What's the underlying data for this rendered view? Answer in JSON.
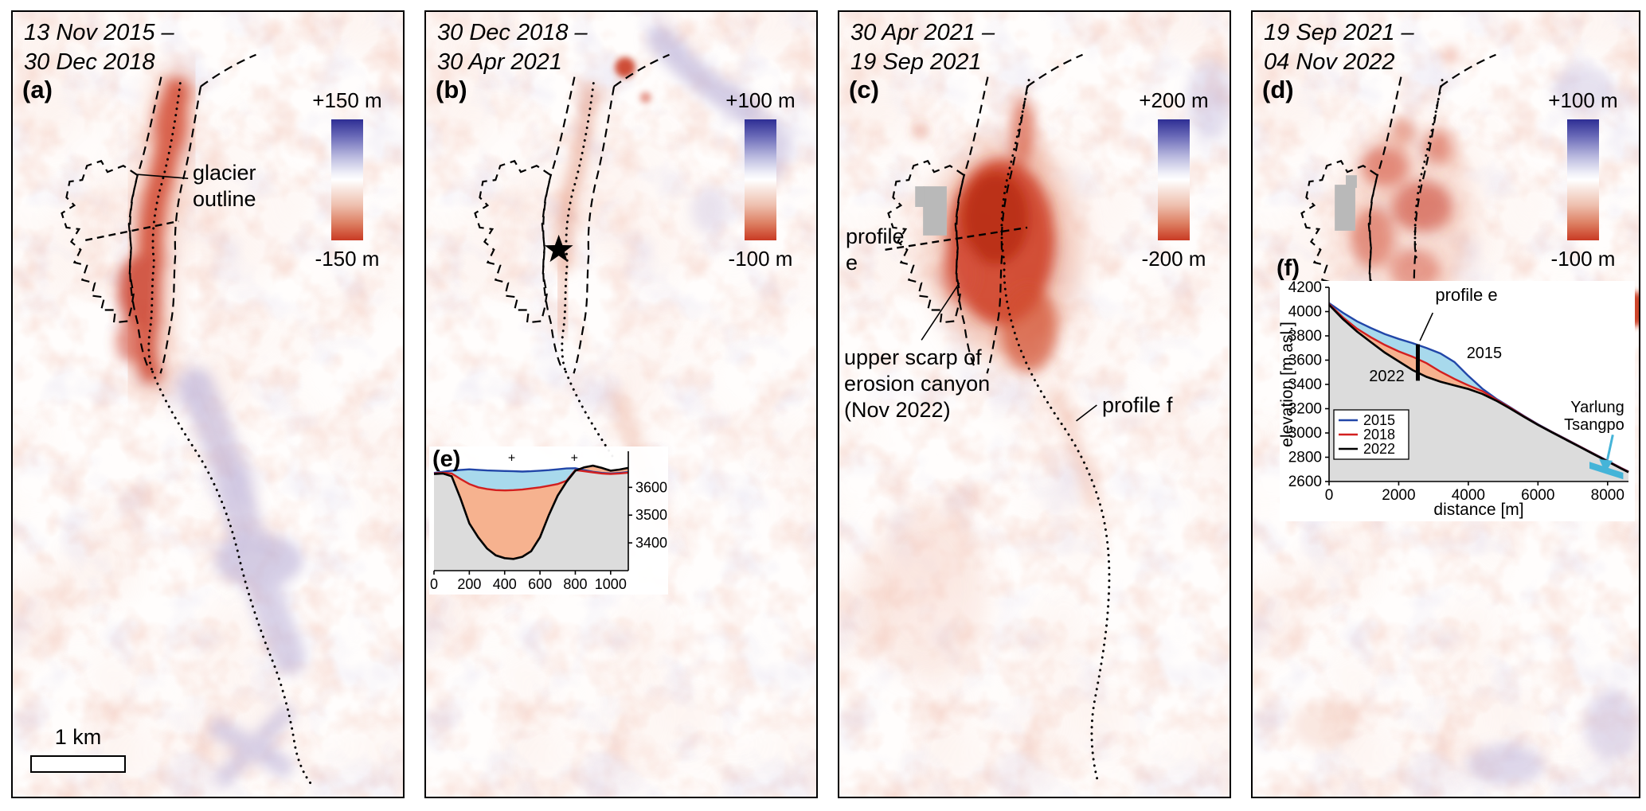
{
  "colormap": {
    "positive_high": "#2e2e94",
    "zero": "#ffffff",
    "negative_high": "#c93a23"
  },
  "panels": {
    "a": {
      "label": "(a)",
      "date1": "13 Nov 2015 –",
      "date2": "30 Dec 2018",
      "colorbar_top": "+150 m",
      "colorbar_bottom": "-150 m",
      "glacier_outline_label": "glacier\noutline",
      "scalebar_label": "1 km"
    },
    "b": {
      "label": "(b)",
      "date1": "30 Dec 2018 –",
      "date2": "30 Apr 2021",
      "colorbar_top": "+100 m",
      "colorbar_bottom": "-100 m",
      "inset_label": "(e)"
    },
    "c": {
      "label": "(c)",
      "date1": "30 Apr 2021 –",
      "date2": "19 Sep 2021",
      "colorbar_top": "+200 m",
      "colorbar_bottom": "-200 m",
      "profile_e_label": "profile\ne",
      "scarp_label": "upper scarp of\nerosion canyon\n(Nov 2022)",
      "profile_f_label": "profile f"
    },
    "d": {
      "label": "(d)",
      "date1": "19 Sep 2021 –",
      "date2": "04 Nov 2022",
      "colorbar_top": "+100 m",
      "colorbar_bottom": "-100 m",
      "inset_label": "(f)"
    }
  },
  "chart_data": [
    {
      "id": "e",
      "type": "line",
      "title": "",
      "xlabel": "",
      "ylabel": "",
      "xlim": [
        0,
        1100
      ],
      "ylim": [
        3300,
        3730
      ],
      "x_ticks": [
        0,
        200,
        400,
        600,
        800,
        1000
      ],
      "y_ticks": [
        3400,
        3500,
        3600
      ],
      "x": [
        0,
        50,
        100,
        150,
        200,
        250,
        300,
        350,
        400,
        450,
        500,
        550,
        600,
        650,
        700,
        750,
        800,
        850,
        900,
        950,
        1000,
        1050,
        1100
      ],
      "series": [
        {
          "name": "2015",
          "color": "#2146a8",
          "y": [
            3652,
            3656,
            3660,
            3663,
            3665,
            3663,
            3661,
            3660,
            3659,
            3658,
            3657,
            3658,
            3660,
            3662,
            3665,
            3668,
            3669,
            3662,
            3656,
            3652,
            3650,
            3652,
            3655
          ]
        },
        {
          "name": "2018",
          "color": "#d21f1f",
          "y": [
            3650,
            3653,
            3650,
            3630,
            3612,
            3600,
            3594,
            3590,
            3589,
            3590,
            3592,
            3596,
            3600,
            3606,
            3612,
            3624,
            3662,
            3658,
            3654,
            3650,
            3648,
            3650,
            3653
          ]
        },
        {
          "name": "2022",
          "color": "#000000",
          "y": [
            3648,
            3650,
            3640,
            3560,
            3470,
            3420,
            3380,
            3355,
            3345,
            3342,
            3350,
            3370,
            3420,
            3500,
            3570,
            3620,
            3660,
            3672,
            3678,
            3670,
            3660,
            3664,
            3670
          ]
        }
      ],
      "fills": {
        "terrain": "#dcdcdc",
        "erosion": "#f6b28f",
        "lake": "#a8d9ec"
      },
      "marker_symbol": "+",
      "marker_x": [
        440,
        795
      ]
    },
    {
      "id": "f",
      "type": "line",
      "title": "",
      "xlabel": "distance [m]",
      "ylabel": "elevation [m asl.]",
      "xlim": [
        0,
        8600
      ],
      "ylim": [
        2600,
        4200
      ],
      "x_ticks": [
        0,
        2000,
        4000,
        6000,
        8000
      ],
      "y_ticks": [
        2600,
        2800,
        3000,
        3200,
        3400,
        3600,
        3800,
        4000,
        4200
      ],
      "x": [
        0,
        400,
        800,
        1200,
        1600,
        2000,
        2400,
        2800,
        3200,
        3600,
        4000,
        4400,
        4800,
        5200,
        5600,
        6000,
        6400,
        6800,
        7200,
        7600,
        8000,
        8400,
        8600
      ],
      "series": [
        {
          "name": "2015",
          "color": "#2146a8",
          "y": [
            4070,
            3990,
            3920,
            3865,
            3815,
            3775,
            3740,
            3700,
            3655,
            3585,
            3470,
            3365,
            3282,
            3212,
            3140,
            3072,
            3010,
            2950,
            2890,
            2830,
            2770,
            2710,
            2682
          ]
        },
        {
          "name": "2018",
          "color": "#d21f1f",
          "y": [
            4062,
            3952,
            3860,
            3788,
            3725,
            3672,
            3628,
            3575,
            3505,
            3445,
            3392,
            3345,
            3275,
            3208,
            3137,
            3069,
            3008,
            2948,
            2888,
            2828,
            2768,
            2708,
            2680
          ]
        },
        {
          "name": "2022",
          "color": "#000000",
          "y": [
            4056,
            3938,
            3836,
            3748,
            3662,
            3590,
            3518,
            3462,
            3422,
            3392,
            3362,
            3322,
            3266,
            3202,
            3133,
            3066,
            3005,
            2945,
            2885,
            2825,
            2765,
            2705,
            2677
          ]
        }
      ],
      "fills": {
        "terrain": "#dcdcdc",
        "erosion": "#f6b28f",
        "lake": "#a8d9ec"
      },
      "legend": [
        "2015",
        "2018",
        "2022"
      ],
      "annotations": [
        {
          "id": "profile-e-callout",
          "text": "profile e",
          "x": 3050,
          "y": 4090,
          "size": 22
        },
        {
          "id": "label-2015",
          "text": "2015",
          "x": 3950,
          "y": 3615,
          "size": 20
        },
        {
          "id": "label-2022",
          "text": "2022",
          "x": 1150,
          "y": 3425,
          "size": 20
        },
        {
          "id": "river-label",
          "text": "Yarlung\nTsangpo",
          "x": 8480,
          "y": 3170,
          "size": 20,
          "color": "#2ba3c4",
          "anchor": "end"
        }
      ],
      "profile_e_bar": {
        "x": 2550,
        "y0": 3430,
        "y1": 3730
      },
      "river_polygon": [
        [
          7480,
          2762
        ],
        [
          8450,
          2672
        ],
        [
          8450,
          2618
        ],
        [
          7480,
          2706
        ]
      ],
      "river_color": "#45b4d8"
    }
  ]
}
